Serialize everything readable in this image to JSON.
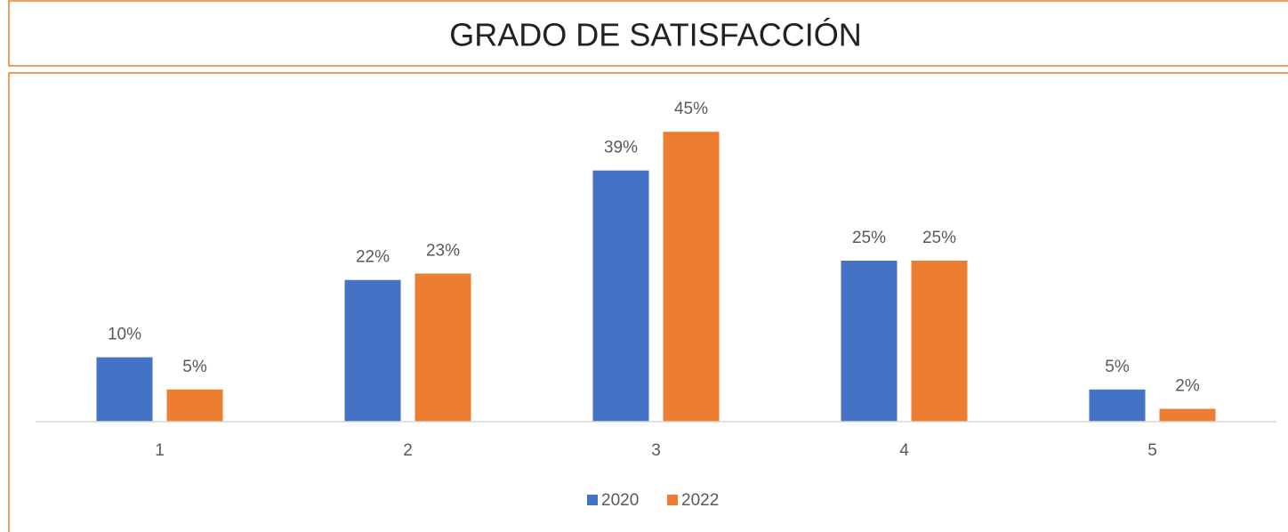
{
  "chart_data": {
    "type": "bar",
    "title": "GRADO DE SATISFACCIÓN",
    "categories": [
      "1",
      "2",
      "3",
      "4",
      "5"
    ],
    "series": [
      {
        "name": "2020",
        "color": "#4472c4",
        "values": [
          10,
          22,
          39,
          25,
          5
        ],
        "value_labels": [
          "10%",
          "22%",
          "39%",
          "25%",
          "5%"
        ]
      },
      {
        "name": "2022",
        "color": "#ed7d31",
        "values": [
          5,
          23,
          45,
          25,
          2
        ],
        "value_labels": [
          "5%",
          "23%",
          "45%",
          "25%",
          "2%"
        ]
      }
    ],
    "ylim": [
      0,
      50
    ],
    "legend": "bottom"
  }
}
